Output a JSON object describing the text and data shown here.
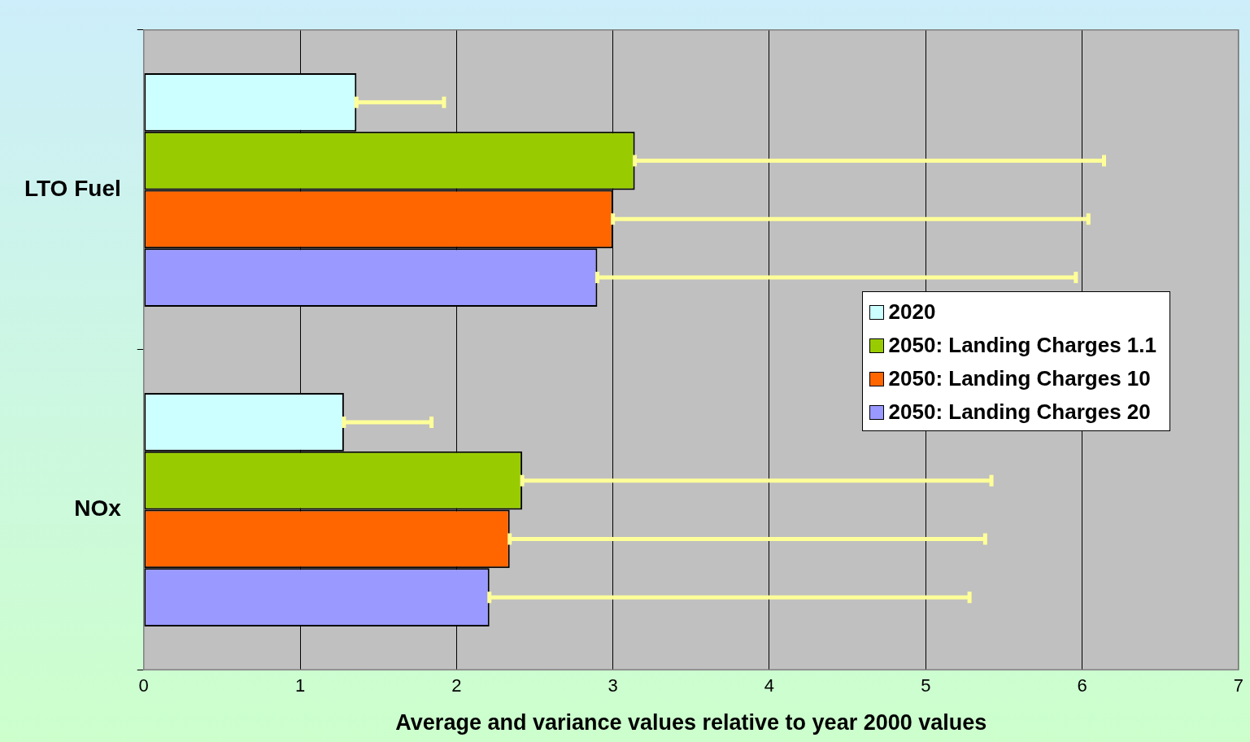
{
  "chart_data": {
    "type": "bar",
    "orientation": "horizontal",
    "xlabel": "Average and variance values relative to year 2000 values",
    "categories": [
      "LTO Fuel",
      "NOx"
    ],
    "series": [
      {
        "name": "2020",
        "color": "#ccffff",
        "values": [
          1.36,
          1.28
        ],
        "errors": [
          [
            1.36,
            1.92
          ],
          [
            1.28,
            1.84
          ]
        ]
      },
      {
        "name": "2050: Landing Charges 1.1",
        "color": "#99cc00",
        "values": [
          3.14,
          2.42
        ],
        "errors": [
          [
            3.14,
            6.14
          ],
          [
            2.42,
            5.42
          ]
        ]
      },
      {
        "name": "2050: Landing Charges 10",
        "color": "#ff6600",
        "values": [
          3.0,
          2.34
        ],
        "errors": [
          [
            3.0,
            6.04
          ],
          [
            2.34,
            5.38
          ]
        ]
      },
      {
        "name": "2050: Landing Charges 20",
        "color": "#9999ff",
        "values": [
          2.9,
          2.21
        ],
        "errors": [
          [
            2.9,
            5.96
          ],
          [
            2.21,
            5.28
          ]
        ]
      }
    ],
    "xlim": [
      0,
      7
    ],
    "xticks": [
      0,
      1,
      2,
      3,
      4,
      5,
      6,
      7
    ],
    "grid": "x",
    "legend": "right"
  }
}
